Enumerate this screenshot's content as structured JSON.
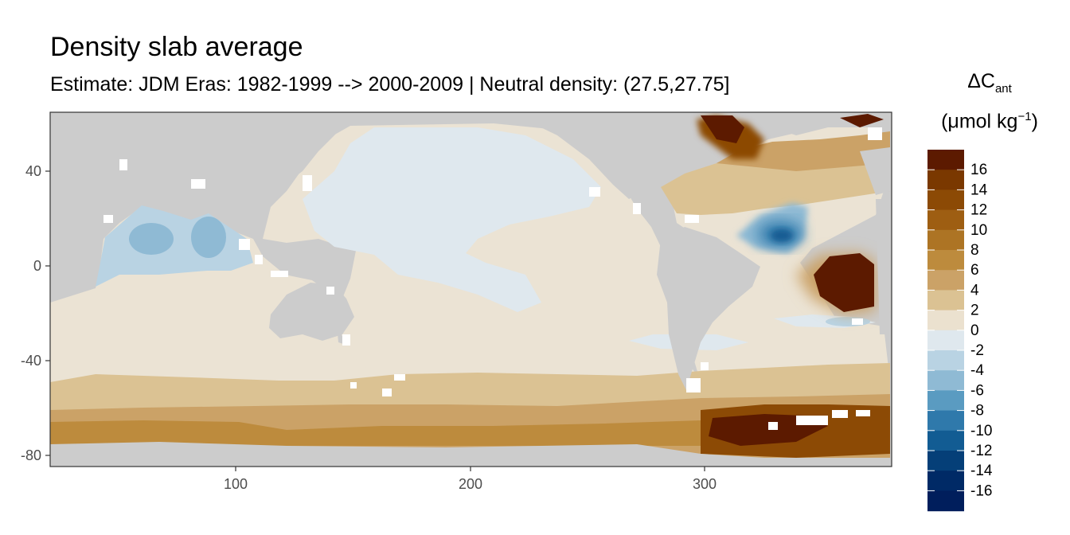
{
  "title": "Density slab average",
  "subtitle": "Estimate: JDM Eras: 1982-1999 --> 2000-2009 | Neutral density: (27.5,27.75]",
  "legend": {
    "title_symbol": "ΔC",
    "title_sub": "ant",
    "unit_main": "(μmol kg",
    "unit_sup": "−1",
    "unit_close": ")",
    "breaks": [
      "16",
      "14",
      "12",
      "10",
      "8",
      "6",
      "4",
      "2",
      "0",
      "-2",
      "-4",
      "-6",
      "-8",
      "-10",
      "-12",
      "-14",
      "-16"
    ],
    "colors": [
      "#5c1a00",
      "#7a3800",
      "#8c4a05",
      "#9e5e12",
      "#ad7424",
      "#bd8b3d",
      "#cba267",
      "#dbc293",
      "#ebe1cf",
      "#dfe8ee",
      "#b9d3e3",
      "#8fbad4",
      "#5a9bc1",
      "#2f79ab",
      "#125c93",
      "#053f78",
      "#002a66",
      "#001e5c"
    ]
  },
  "axes": {
    "x_ticks": [
      "100",
      "200",
      "300"
    ],
    "y_ticks": [
      "40",
      "0",
      "-40",
      "-80"
    ]
  },
  "chart_data": {
    "type": "heatmap",
    "title": "Density slab average",
    "subtitle": "Estimate: JDM Eras: 1982-1999 --> 2000-2009 | Neutral density: (27.5,27.75]",
    "xlabel": "",
    "ylabel": "",
    "xlim": [
      20,
      380
    ],
    "ylim": [
      -85,
      65
    ],
    "x_ticks": [
      100,
      200,
      300
    ],
    "y_ticks": [
      40,
      0,
      -40,
      -80
    ],
    "colorbar_label": "ΔC_ant (μmol kg−1)",
    "colorbar_breaks": [
      16,
      14,
      12,
      10,
      8,
      6,
      4,
      2,
      0,
      -2,
      -4,
      -6,
      -8,
      -10,
      -12,
      -14,
      -16
    ],
    "land_color": "#cccccc"
  }
}
